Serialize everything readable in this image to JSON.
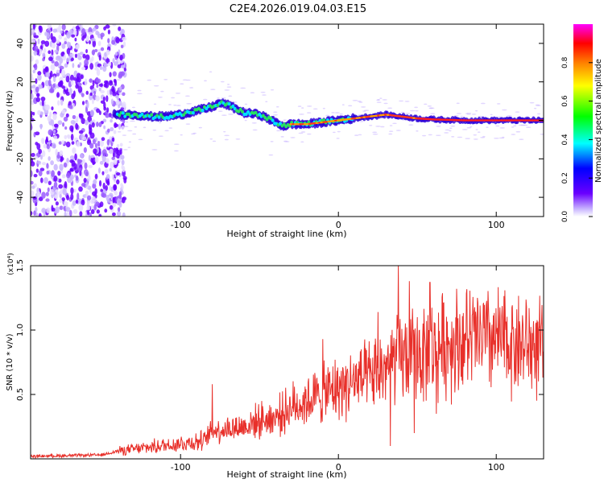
{
  "title": "C2E4.2026.019.04.03.E15",
  "chart_data": [
    {
      "type": "heatmap",
      "xlabel": "Height of straight line (km)",
      "ylabel": "Frequency (Hz)",
      "xlim": [
        -195,
        130
      ],
      "ylim": [
        -50,
        50
      ],
      "xticks": [
        -100,
        0,
        100
      ],
      "yticks": [
        -40,
        -20,
        0,
        20,
        40
      ],
      "colorbar": {
        "label": "Normalized spectral amplitude",
        "range": [
          0.0,
          1.0
        ],
        "ticks": [
          "0.0",
          "0.2",
          "0.4",
          "0.6",
          "0.8"
        ],
        "tick_values": [
          0.0,
          0.2,
          0.4,
          0.6,
          0.8
        ],
        "colormap": [
          "#ffffff",
          "#c8b4ff",
          "#6a00ff",
          "#0000ff",
          "#00ffff",
          "#00ff00",
          "#ffff00",
          "#ff7f00",
          "#ff0000",
          "#ff00ff"
        ]
      },
      "ridge": {
        "x": [
          -142,
          -130,
          -120,
          -110,
          -100,
          -90,
          -80,
          -75,
          -70,
          -60,
          -50,
          -45,
          -40,
          -35,
          -30,
          -20,
          -10,
          0,
          10,
          20,
          30,
          40,
          50,
          60,
          80,
          100,
          130
        ],
        "freq_hz": [
          3,
          3,
          2,
          2,
          3,
          5,
          7,
          9,
          8,
          4,
          3,
          1,
          -1,
          -3,
          -2,
          -2,
          -1,
          0,
          1,
          2,
          3,
          2,
          1,
          0.5,
          0,
          0,
          0
        ]
      }
    },
    {
      "type": "line",
      "xlabel": "Height of straight line (km)",
      "ylabel": "SNR (10 * v/v)",
      "y_multiplier": "(x10⁴)",
      "xlim": [
        -195,
        130
      ],
      "ylim": [
        0,
        1.5
      ],
      "xticks": [
        -100,
        0,
        100
      ],
      "yticks": [
        0.5,
        1.0,
        1.5
      ],
      "ytick_labels": [
        "0.5",
        "1.0",
        "1.5"
      ],
      "series": [
        {
          "name": "SNR",
          "color": "#e8302a",
          "envelope_x": [
            -195,
            -150,
            -140,
            -120,
            -100,
            -85,
            -80,
            -60,
            -50,
            -40,
            -30,
            -20,
            -10,
            0,
            10,
            20,
            30,
            40,
            50,
            60,
            70,
            80,
            90,
            100,
            110,
            120,
            130
          ],
          "envelope_y": [
            0.02,
            0.03,
            0.06,
            0.09,
            0.12,
            0.14,
            0.22,
            0.25,
            0.3,
            0.32,
            0.4,
            0.45,
            0.5,
            0.55,
            0.6,
            0.62,
            0.72,
            0.78,
            0.8,
            0.85,
            0.9,
            0.92,
            0.93,
            0.92,
            0.9,
            0.88,
            0.85
          ],
          "peaks": [
            {
              "x": -80,
              "y": 0.58
            },
            {
              "x": -10,
              "y": 0.93
            },
            {
              "x": 25,
              "y": 1.14
            },
            {
              "x": 38,
              "y": 1.5
            },
            {
              "x": 45,
              "y": 1.38
            },
            {
              "x": 50,
              "y": 1.1
            },
            {
              "x": 58,
              "y": 1.37
            },
            {
              "x": 75,
              "y": 1.32
            },
            {
              "x": 88,
              "y": 1.25
            }
          ],
          "dips": [
            {
              "x": 33,
              "y": 0.1
            },
            {
              "x": 48,
              "y": 0.2
            },
            {
              "x": 62,
              "y": 0.35
            }
          ]
        }
      ]
    }
  ]
}
